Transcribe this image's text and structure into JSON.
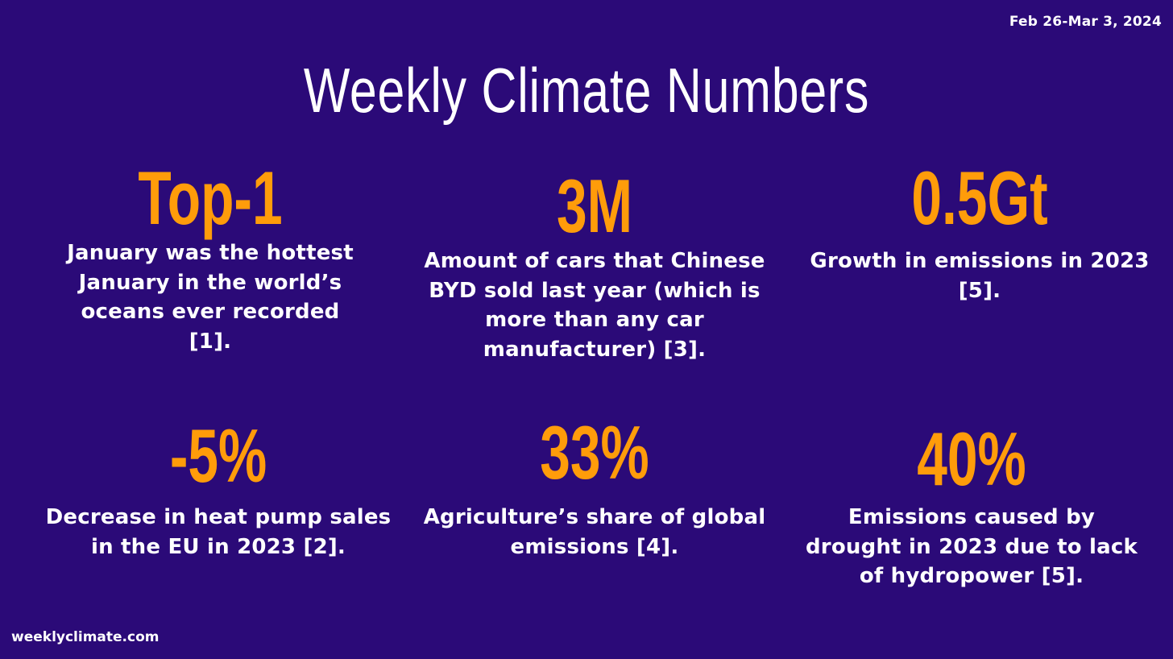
{
  "date_range": "Feb 26-Mar 3, 2024",
  "title": "Weekly Climate Numbers",
  "stats": [
    {
      "value": "Top-1",
      "description": "January was the hottest January in the world’s oceans ever recorded [1]."
    },
    {
      "value": "3M",
      "description": "Amount of cars that Chinese BYD sold last year (which is more than any car manufacturer) [3]."
    },
    {
      "value": "0.5Gt",
      "description": "Growth in emissions in 2023 [5]."
    },
    {
      "value": "-5%",
      "description": "Decrease in heat pump sales in the EU in 2023 [2]."
    },
    {
      "value": "33%",
      "description": "Agriculture’s share of global emissions [4]."
    },
    {
      "value": "40%",
      "description": "Emissions caused by drought in 2023 due to lack of hydropower [5]."
    }
  ],
  "footer": "weeklyclimate.com",
  "colors": {
    "background": "#2b0a78",
    "accent": "#ff9c0a",
    "text": "#ffffff"
  }
}
